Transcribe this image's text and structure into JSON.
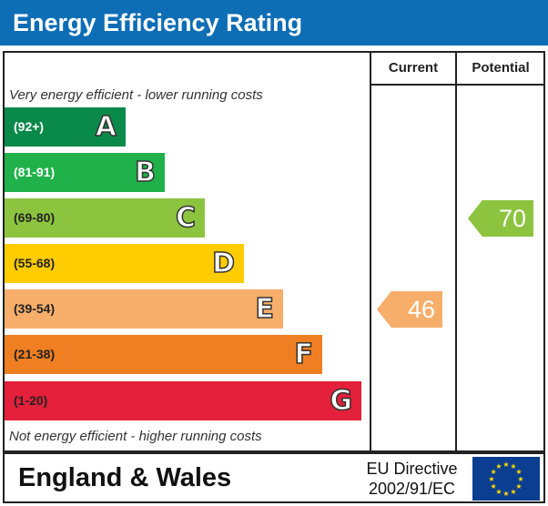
{
  "header": {
    "title": "Energy Efficiency Rating"
  },
  "columns": {
    "current": "Current",
    "potential": "Potential"
  },
  "captions": {
    "top": "Very energy efficient - lower running costs",
    "bottom": "Not energy efficient - higher running costs"
  },
  "colors": {
    "title_bar": "#0d6db5",
    "A": "#0a8a4a",
    "B": "#20b14a",
    "C": "#8cc43f",
    "D": "#ffcc00",
    "E": "#f7ae6a",
    "F": "#ef7f22",
    "G": "#e4203a",
    "eu_flag": "#0b3d91",
    "eu_stars": "#ffdd00"
  },
  "chart_data": {
    "type": "bar",
    "categories": [
      "A",
      "B",
      "C",
      "D",
      "E",
      "F",
      "G"
    ],
    "bands": [
      {
        "letter": "A",
        "range": "(92+)"
      },
      {
        "letter": "B",
        "range": "(81-91)"
      },
      {
        "letter": "C",
        "range": "(69-80)"
      },
      {
        "letter": "D",
        "range": "(55-68)"
      },
      {
        "letter": "E",
        "range": "(39-54)"
      },
      {
        "letter": "F",
        "range": "(21-38)"
      },
      {
        "letter": "G",
        "range": "(1-20)"
      }
    ],
    "current": {
      "value": 46,
      "band": "E",
      "label": "46"
    },
    "potential": {
      "value": 70,
      "band": "C",
      "label": "70"
    }
  },
  "footer": {
    "region": "England & Wales",
    "directive_line1": "EU Directive",
    "directive_line2": "2002/91/EC"
  }
}
